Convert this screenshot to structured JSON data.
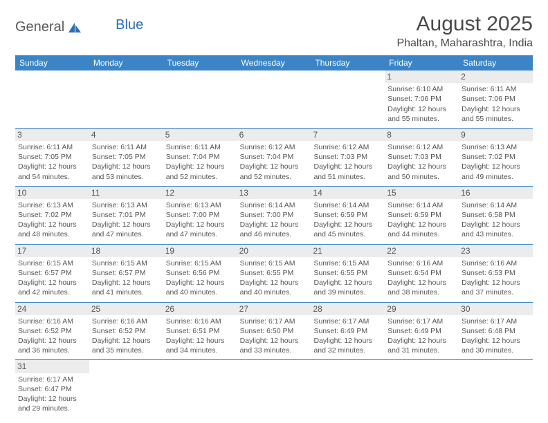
{
  "logo": {
    "general": "General",
    "blue": "Blue"
  },
  "title": "August 2025",
  "location": "Phaltan, Maharashtra, India",
  "colors": {
    "header_bg": "#3b85c6",
    "header_text": "#ffffff",
    "row_border": "#3b85c6",
    "daynum_bg": "#ececec",
    "body_text": "#555555",
    "logo_blue": "#2a6db5"
  },
  "weekdays": [
    "Sunday",
    "Monday",
    "Tuesday",
    "Wednesday",
    "Thursday",
    "Friday",
    "Saturday"
  ],
  "weeks": [
    [
      {
        "n": "",
        "sr": "",
        "ss": "",
        "dl": ""
      },
      {
        "n": "",
        "sr": "",
        "ss": "",
        "dl": ""
      },
      {
        "n": "",
        "sr": "",
        "ss": "",
        "dl": ""
      },
      {
        "n": "",
        "sr": "",
        "ss": "",
        "dl": ""
      },
      {
        "n": "",
        "sr": "",
        "ss": "",
        "dl": ""
      },
      {
        "n": "1",
        "sr": "Sunrise: 6:10 AM",
        "ss": "Sunset: 7:06 PM",
        "dl": "Daylight: 12 hours and 55 minutes."
      },
      {
        "n": "2",
        "sr": "Sunrise: 6:11 AM",
        "ss": "Sunset: 7:06 PM",
        "dl": "Daylight: 12 hours and 55 minutes."
      }
    ],
    [
      {
        "n": "3",
        "sr": "Sunrise: 6:11 AM",
        "ss": "Sunset: 7:05 PM",
        "dl": "Daylight: 12 hours and 54 minutes."
      },
      {
        "n": "4",
        "sr": "Sunrise: 6:11 AM",
        "ss": "Sunset: 7:05 PM",
        "dl": "Daylight: 12 hours and 53 minutes."
      },
      {
        "n": "5",
        "sr": "Sunrise: 6:11 AM",
        "ss": "Sunset: 7:04 PM",
        "dl": "Daylight: 12 hours and 52 minutes."
      },
      {
        "n": "6",
        "sr": "Sunrise: 6:12 AM",
        "ss": "Sunset: 7:04 PM",
        "dl": "Daylight: 12 hours and 52 minutes."
      },
      {
        "n": "7",
        "sr": "Sunrise: 6:12 AM",
        "ss": "Sunset: 7:03 PM",
        "dl": "Daylight: 12 hours and 51 minutes."
      },
      {
        "n": "8",
        "sr": "Sunrise: 6:12 AM",
        "ss": "Sunset: 7:03 PM",
        "dl": "Daylight: 12 hours and 50 minutes."
      },
      {
        "n": "9",
        "sr": "Sunrise: 6:13 AM",
        "ss": "Sunset: 7:02 PM",
        "dl": "Daylight: 12 hours and 49 minutes."
      }
    ],
    [
      {
        "n": "10",
        "sr": "Sunrise: 6:13 AM",
        "ss": "Sunset: 7:02 PM",
        "dl": "Daylight: 12 hours and 48 minutes."
      },
      {
        "n": "11",
        "sr": "Sunrise: 6:13 AM",
        "ss": "Sunset: 7:01 PM",
        "dl": "Daylight: 12 hours and 47 minutes."
      },
      {
        "n": "12",
        "sr": "Sunrise: 6:13 AM",
        "ss": "Sunset: 7:00 PM",
        "dl": "Daylight: 12 hours and 47 minutes."
      },
      {
        "n": "13",
        "sr": "Sunrise: 6:14 AM",
        "ss": "Sunset: 7:00 PM",
        "dl": "Daylight: 12 hours and 46 minutes."
      },
      {
        "n": "14",
        "sr": "Sunrise: 6:14 AM",
        "ss": "Sunset: 6:59 PM",
        "dl": "Daylight: 12 hours and 45 minutes."
      },
      {
        "n": "15",
        "sr": "Sunrise: 6:14 AM",
        "ss": "Sunset: 6:59 PM",
        "dl": "Daylight: 12 hours and 44 minutes."
      },
      {
        "n": "16",
        "sr": "Sunrise: 6:14 AM",
        "ss": "Sunset: 6:58 PM",
        "dl": "Daylight: 12 hours and 43 minutes."
      }
    ],
    [
      {
        "n": "17",
        "sr": "Sunrise: 6:15 AM",
        "ss": "Sunset: 6:57 PM",
        "dl": "Daylight: 12 hours and 42 minutes."
      },
      {
        "n": "18",
        "sr": "Sunrise: 6:15 AM",
        "ss": "Sunset: 6:57 PM",
        "dl": "Daylight: 12 hours and 41 minutes."
      },
      {
        "n": "19",
        "sr": "Sunrise: 6:15 AM",
        "ss": "Sunset: 6:56 PM",
        "dl": "Daylight: 12 hours and 40 minutes."
      },
      {
        "n": "20",
        "sr": "Sunrise: 6:15 AM",
        "ss": "Sunset: 6:55 PM",
        "dl": "Daylight: 12 hours and 40 minutes."
      },
      {
        "n": "21",
        "sr": "Sunrise: 6:15 AM",
        "ss": "Sunset: 6:55 PM",
        "dl": "Daylight: 12 hours and 39 minutes."
      },
      {
        "n": "22",
        "sr": "Sunrise: 6:16 AM",
        "ss": "Sunset: 6:54 PM",
        "dl": "Daylight: 12 hours and 38 minutes."
      },
      {
        "n": "23",
        "sr": "Sunrise: 6:16 AM",
        "ss": "Sunset: 6:53 PM",
        "dl": "Daylight: 12 hours and 37 minutes."
      }
    ],
    [
      {
        "n": "24",
        "sr": "Sunrise: 6:16 AM",
        "ss": "Sunset: 6:52 PM",
        "dl": "Daylight: 12 hours and 36 minutes."
      },
      {
        "n": "25",
        "sr": "Sunrise: 6:16 AM",
        "ss": "Sunset: 6:52 PM",
        "dl": "Daylight: 12 hours and 35 minutes."
      },
      {
        "n": "26",
        "sr": "Sunrise: 6:16 AM",
        "ss": "Sunset: 6:51 PM",
        "dl": "Daylight: 12 hours and 34 minutes."
      },
      {
        "n": "27",
        "sr": "Sunrise: 6:17 AM",
        "ss": "Sunset: 6:50 PM",
        "dl": "Daylight: 12 hours and 33 minutes."
      },
      {
        "n": "28",
        "sr": "Sunrise: 6:17 AM",
        "ss": "Sunset: 6:49 PM",
        "dl": "Daylight: 12 hours and 32 minutes."
      },
      {
        "n": "29",
        "sr": "Sunrise: 6:17 AM",
        "ss": "Sunset: 6:49 PM",
        "dl": "Daylight: 12 hours and 31 minutes."
      },
      {
        "n": "30",
        "sr": "Sunrise: 6:17 AM",
        "ss": "Sunset: 6:48 PM",
        "dl": "Daylight: 12 hours and 30 minutes."
      }
    ],
    [
      {
        "n": "31",
        "sr": "Sunrise: 6:17 AM",
        "ss": "Sunset: 6:47 PM",
        "dl": "Daylight: 12 hours and 29 minutes."
      },
      {
        "n": "",
        "sr": "",
        "ss": "",
        "dl": ""
      },
      {
        "n": "",
        "sr": "",
        "ss": "",
        "dl": ""
      },
      {
        "n": "",
        "sr": "",
        "ss": "",
        "dl": ""
      },
      {
        "n": "",
        "sr": "",
        "ss": "",
        "dl": ""
      },
      {
        "n": "",
        "sr": "",
        "ss": "",
        "dl": ""
      },
      {
        "n": "",
        "sr": "",
        "ss": "",
        "dl": ""
      }
    ]
  ]
}
